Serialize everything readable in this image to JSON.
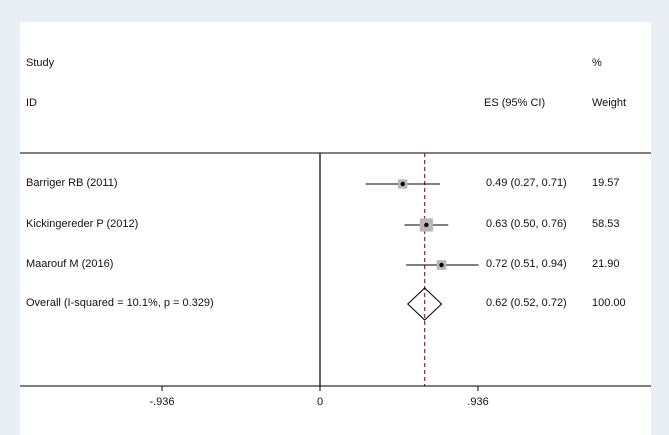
{
  "chart_data": {
    "type": "forest",
    "headers": {
      "study_top": "Study",
      "study_bottom": "ID",
      "es": "ES (95% CI)",
      "weight_top": "%",
      "weight_bottom": "Weight"
    },
    "studies": [
      {
        "label": "Barriger RB (2011)",
        "es": 0.49,
        "lo": 0.27,
        "hi": 0.71,
        "es_text": "0.49 (0.27, 0.71)",
        "weight": "19.57"
      },
      {
        "label": "Kickingereder P (2012)",
        "es": 0.63,
        "lo": 0.5,
        "hi": 0.76,
        "es_text": "0.63 (0.50, 0.76)",
        "weight": "58.53"
      },
      {
        "label": "Maarouf M (2016)",
        "es": 0.72,
        "lo": 0.51,
        "hi": 0.94,
        "es_text": "0.72 (0.51, 0.94)",
        "weight": "21.90"
      }
    ],
    "overall": {
      "label": "Overall  (I-squared = 10.1%, p = 0.329)",
      "es": 0.62,
      "lo": 0.52,
      "hi": 0.72,
      "es_text": "0.62 (0.52, 0.72)",
      "weight": "100.00"
    },
    "xaxis": {
      "min": -0.936,
      "max": 0.936,
      "ticks": [
        -0.936,
        0,
        0.936
      ],
      "tick_labels": [
        "-.936",
        "0",
        ".936"
      ]
    },
    "null_line": 0
  }
}
